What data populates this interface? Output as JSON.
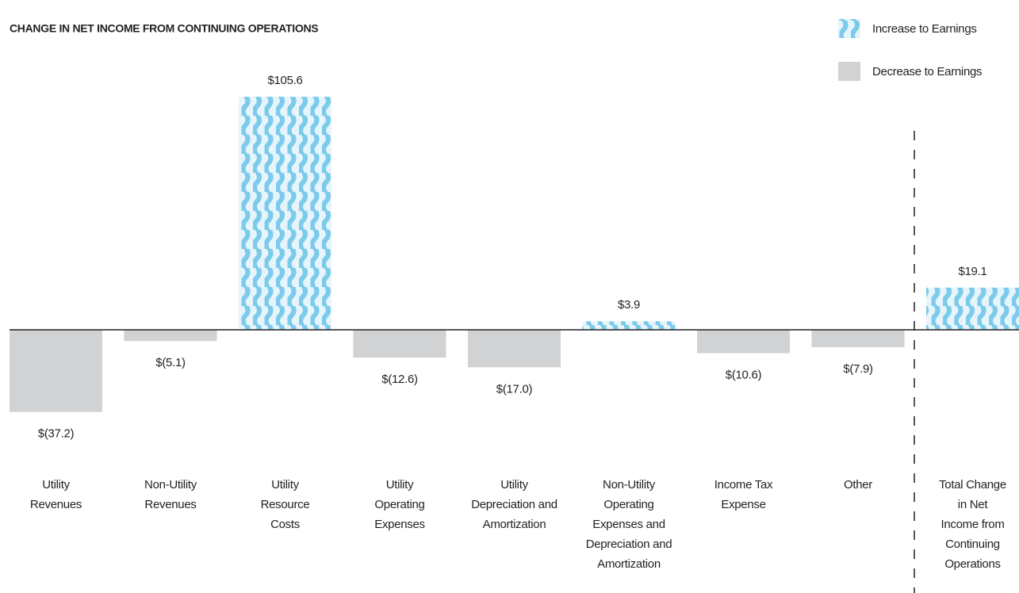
{
  "chart_data": {
    "type": "bar",
    "title": "CHANGE IN NET INCOME FROM CONTINUING OPERATIONS",
    "categories": [
      "Utility\nRevenues",
      "Non-Utility\nRevenues",
      "Utility\nResource\nCosts",
      "Utility\nOperating\nExpenses",
      "Utility\nDepreciation and\nAmortization",
      "Non-Utility\nOperating\nExpenses and\nDepreciation and\nAmortization",
      "Income Tax\nExpense",
      "Other",
      "Total Change\nin Net\nIncome from\nContinuing\nOperations"
    ],
    "values": [
      -37.2,
      -5.1,
      105.6,
      -12.6,
      -17.0,
      3.9,
      -10.6,
      -7.9,
      19.1
    ],
    "value_labels": [
      "$(37.2)",
      "$(5.1)",
      "$105.6",
      "$(12.6)",
      "$(17.0)",
      "$3.9",
      "$(10.6)",
      "$(7.9)",
      "$19.1"
    ],
    "legend": [
      {
        "name": "Increase to Earnings",
        "color": "#7ccbeb"
      },
      {
        "name": "Decrease to Earnings",
        "color": "#d1d2d4"
      }
    ]
  }
}
